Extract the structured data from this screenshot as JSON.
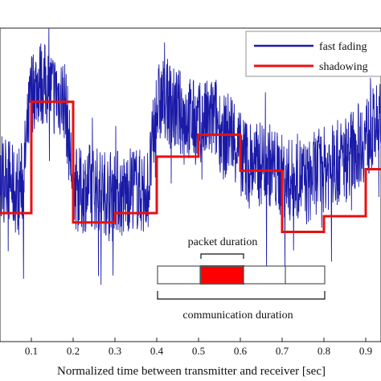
{
  "chart_data": {
    "type": "line",
    "title": "",
    "xlabel": "Normalized time between transmitter and receiver [sec]",
    "ylabel": "",
    "xlim": [
      0.0,
      0.94
    ],
    "ylim": [
      -1.0,
      1.0
    ],
    "x_ticks": [
      "0.1",
      "0.2",
      "0.3",
      "0.4",
      "0.5",
      "0.6",
      "0.7",
      "0.8",
      "0.9"
    ],
    "grid": false,
    "legend_position": "top-right",
    "series": [
      {
        "name": "fast fading",
        "color": "#1a1aa8",
        "x": [
          0.0,
          0.02,
          0.04,
          0.06,
          0.08,
          0.1,
          0.12,
          0.14,
          0.16,
          0.18,
          0.2,
          0.22,
          0.24,
          0.26,
          0.28,
          0.3,
          0.32,
          0.34,
          0.36,
          0.38,
          0.4,
          0.42,
          0.44,
          0.46,
          0.48,
          0.5,
          0.52,
          0.54,
          0.56,
          0.58,
          0.6,
          0.62,
          0.64,
          0.66,
          0.68,
          0.7,
          0.72,
          0.74,
          0.76,
          0.78,
          0.8,
          0.82,
          0.84,
          0.86,
          0.88,
          0.9,
          0.92,
          0.94
        ],
        "y": [
          0.05,
          0.0,
          0.08,
          -0.05,
          0.02,
          0.6,
          0.66,
          0.62,
          0.58,
          0.55,
          0.0,
          -0.05,
          0.0,
          -0.03,
          -0.05,
          -0.02,
          -0.08,
          0.0,
          -0.04,
          -0.02,
          0.5,
          0.55,
          0.48,
          0.46,
          0.42,
          0.38,
          0.4,
          0.43,
          0.3,
          0.35,
          0.2,
          0.15,
          0.12,
          0.16,
          0.1,
          0.05,
          0.02,
          0.06,
          0.0,
          0.08,
          0.1,
          0.12,
          0.15,
          0.2,
          0.25,
          0.3,
          0.35,
          0.4
        ]
      },
      {
        "name": "shadowing",
        "color": "#e81010",
        "step": true,
        "x": [
          0.0,
          0.1,
          0.2,
          0.3,
          0.4,
          0.5,
          0.6,
          0.7,
          0.8,
          0.9,
          0.94
        ],
        "y": [
          -0.18,
          0.53,
          -0.24,
          -0.18,
          0.18,
          0.32,
          0.09,
          -0.3,
          -0.2,
          0.1,
          0.1
        ]
      }
    ],
    "annotations": {
      "packet_duration_label": "packet duration",
      "communication_duration_label": "communication duration"
    }
  }
}
